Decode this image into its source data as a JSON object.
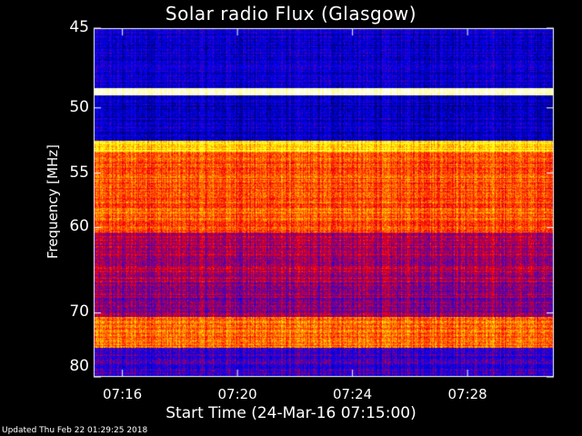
{
  "chart_data": {
    "type": "heatmap",
    "title": "Solar radio Flux (Glasgow)",
    "xlabel": "Start Time (24-Mar-16 07:15:00)",
    "ylabel": "Frequency [MHz]",
    "y_ticks": [
      {
        "value": 45,
        "label": "45"
      },
      {
        "value": 50,
        "label": "50"
      },
      {
        "value": 55,
        "label": "55"
      },
      {
        "value": 60,
        "label": "60"
      },
      {
        "value": 70,
        "label": "70"
      },
      {
        "value": 80,
        "label": "80"
      }
    ],
    "x_ticks": [
      {
        "value": "07:16",
        "label": "07:16"
      },
      {
        "value": "07:20",
        "label": "07:20"
      },
      {
        "value": "07:24",
        "label": "07:24"
      },
      {
        "value": "07:28",
        "label": "07:28"
      }
    ],
    "x_range": [
      "07:15:00",
      "07:31:00"
    ],
    "y_range": [
      45,
      80
    ],
    "y_scale": "reciprocal",
    "colormap": [
      "#000000",
      "#0000ff",
      "#ff0000",
      "#ffff00",
      "#ffffff"
    ],
    "intensity_bands": [
      {
        "freq_from": 45,
        "freq_to": 48.6,
        "level": 0.22
      },
      {
        "freq_from": 48.6,
        "freq_to": 49.1,
        "level": 0.98
      },
      {
        "freq_from": 49.1,
        "freq_to": 52.4,
        "level": 0.2
      },
      {
        "freq_from": 52.4,
        "freq_to": 53.2,
        "level": 0.72
      },
      {
        "freq_from": 53.2,
        "freq_to": 60.5,
        "level": 0.58
      },
      {
        "freq_from": 60.5,
        "freq_to": 66,
        "level": 0.42
      },
      {
        "freq_from": 66,
        "freq_to": 70.5,
        "level": 0.38
      },
      {
        "freq_from": 70.5,
        "freq_to": 75,
        "level": 0.6
      },
      {
        "freq_from": 75,
        "freq_to": 80,
        "level": 0.3
      }
    ]
  },
  "footer": {
    "updated": "Updated Thu Feb 22 01:29:25 2018"
  }
}
